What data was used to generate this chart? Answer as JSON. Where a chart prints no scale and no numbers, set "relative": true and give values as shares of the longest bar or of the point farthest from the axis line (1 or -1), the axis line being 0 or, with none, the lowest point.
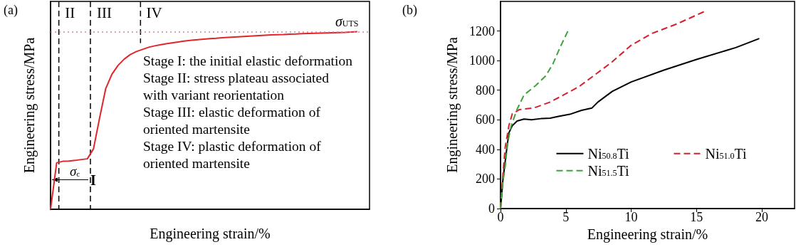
{
  "chart_data": [
    {
      "type": "line",
      "title": "(a)",
      "xlabel": "Engineering strain/%",
      "ylabel": "Engineering stress/MPa",
      "relative": true,
      "line_style": "solid",
      "categories": [
        null,
        null,
        null,
        null,
        null,
        null,
        null,
        null,
        null,
        null,
        null,
        null,
        null,
        null,
        null,
        null,
        null,
        null,
        null,
        null,
        null,
        null,
        null,
        null,
        null,
        null,
        null,
        null,
        null,
        null,
        null,
        null,
        null,
        null,
        null,
        null,
        null,
        null,
        null,
        null,
        null,
        null,
        null,
        null,
        null,
        null,
        null,
        null,
        null,
        null,
        null,
        null,
        null
      ],
      "series": [
        {
          "color": "#e0262a",
          "values": [
            0,
            0.262,
            0.27,
            0.271,
            0.275,
            0.28,
            0.284,
            0.34,
            0.515,
            0.68,
            0.76,
            0.81,
            0.845,
            0.871,
            0.888,
            0.9,
            0.912,
            0.92,
            0.927,
            0.933,
            0.938,
            0.943,
            0.948,
            0.952,
            0.955,
            0.958,
            0.961,
            0.963,
            0.966,
            0.968,
            0.97,
            0.972,
            0.974,
            0.976,
            0.978,
            0.98,
            0.982,
            0.983,
            0.984,
            0.986,
            0.987,
            0.989,
            0.99,
            0.991,
            0.992,
            0.993,
            0.994,
            0.995,
            0.996,
            0.998,
            1,
            null,
            null
          ]
        }
      ],
      "ref_lines": [
        {
          "axis": "y",
          "value": 1,
          "label": "σ$_{UTS}$",
          "color": "#d77fb0",
          "line_style": "dotted"
        }
      ],
      "annotations": [
        "Stage I: the initial elastic deformation",
        "Stage II: stress plateau associated with variant reorientation",
        "Stage III: elastic deformation of oriented martensite",
        "Stage IV: plastic deformation of oriented martensite",
        {
          "text": "σ$_{c}$"
        },
        {
          "text": "I"
        },
        {
          "text": "II"
        },
        {
          "text": "III"
        },
        {
          "text": "IV"
        }
      ]
    },
    {
      "type": "line",
      "title": "(b)",
      "xlabel": "Engineering strain/%",
      "ylabel": "Engineering stress/MPa",
      "xlim": [
        0,
        22.5
      ],
      "xticks": [
        0,
        5,
        10,
        15,
        20
      ],
      "ylim": [
        0,
        1400
      ],
      "yticks": [
        0,
        200,
        400,
        600,
        800,
        1000,
        1200
      ],
      "legend": "bottom",
      "series": [
        {
          "name": "Ni$_{50.8}$Ti",
          "color": "#000000",
          "line_style": "solid",
          "x": [
            0,
            0.18,
            0.45,
            0.64,
            0.9,
            1.27,
            1.8,
            2.36,
            3.1,
            3.8,
            4.5,
            5.3,
            6.2,
            7.0,
            7.45,
            8.55,
            10,
            12.5,
            15,
            18,
            19.8
          ],
          "values": [
            0,
            192,
            384,
            512,
            560,
            592,
            605,
            600,
            608,
            611,
            624,
            637,
            664,
            680,
            720,
            792,
            856,
            936,
            1008,
            1088,
            1149
          ]
        },
        {
          "name": "Ni$_{51.0}$Ti",
          "color": "#d6202e",
          "line_style": "dashed",
          "x": [
            0,
            0.15,
            0.36,
            0.64,
            0.9,
            1.45,
            2.55,
            3.8,
            5,
            6,
            7.1,
            8.55,
            10,
            11.6,
            13.5,
            15.7
          ],
          "values": [
            0,
            192,
            416,
            560,
            640,
            669,
            680,
            720,
            776,
            824,
            896,
            992,
            1104,
            1184,
            1248,
            1336
          ]
        },
        {
          "name": "Ni$_{51.5}$Ti",
          "color": "#3aa53a",
          "line_style": "dashed",
          "x": [
            0,
            0.15,
            0.36,
            0.55,
            0.82,
            1.27,
            1.8,
            2.7,
            3.45,
            4,
            4.55,
            5.2
          ],
          "values": [
            0,
            160,
            288,
            448,
            560,
            672,
            768,
            832,
            896,
            976,
            1088,
            1208
          ]
        }
      ]
    }
  ]
}
